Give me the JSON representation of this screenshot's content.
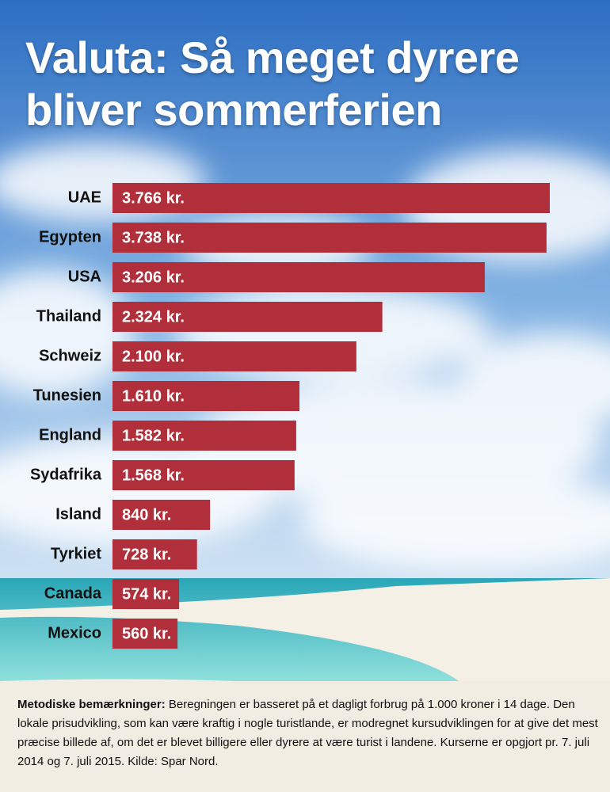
{
  "chart_data": {
    "type": "bar",
    "orientation": "horizontal",
    "title": "Valuta: Så meget dyrere bliver sommerferien",
    "categories": [
      "UAE",
      "Egypten",
      "USA",
      "Thailand",
      "Schweiz",
      "Tunesien",
      "England",
      "Sydafrika",
      "Island",
      "Tyrkiet",
      "Canada",
      "Mexico"
    ],
    "values": [
      3766,
      3738,
      3206,
      2324,
      2100,
      1610,
      1582,
      1568,
      840,
      728,
      574,
      560
    ],
    "value_labels": [
      "3.766 kr.",
      "3.738 kr.",
      "3.206 kr.",
      "2.324 kr.",
      "2.100 kr.",
      "1.610 kr.",
      "1.582 kr.",
      "1.568 kr.",
      "840 kr.",
      "728 kr.",
      "574 kr.",
      "560 kr."
    ],
    "color": "#b02f3b",
    "note_title": "Metodiske bemærkninger:",
    "note": "Beregningen er basseret på et dagligt forbrug på 1.000 kroner i 14 dage. Den lokale prisudvikling, som kan være kraftig i nogle turistlande, er modregnet kursudviklingen for at give det mest præcise billede af, om det er blevet billigere eller dyrere at være turist i landene. Kurserne er opgjort pr. 7. juli 2014 og 7. juli 2015. Kilde: Spar Nord."
  }
}
